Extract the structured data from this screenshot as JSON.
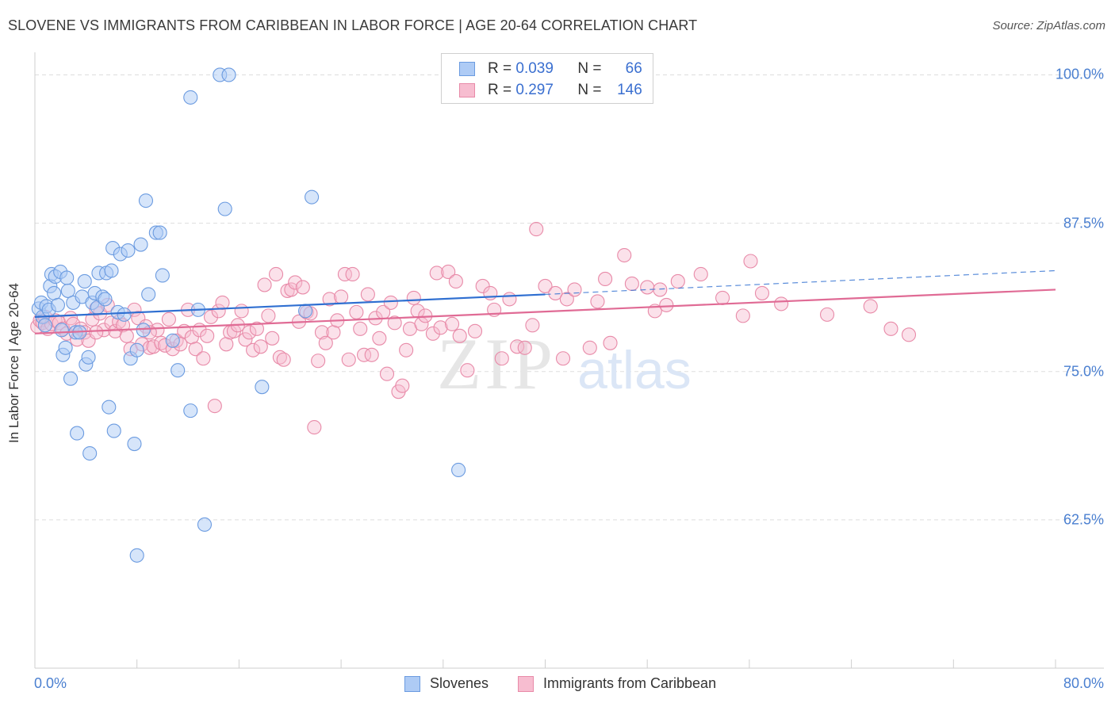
{
  "title": "SLOVENE VS IMMIGRANTS FROM CARIBBEAN IN LABOR FORCE | AGE 20-64 CORRELATION CHART",
  "source": "Source: ZipAtlas.com",
  "watermark": {
    "zip": "ZIP",
    "atlas": "atlas"
  },
  "legend": {
    "r_label": "R =",
    "n_label": "N =",
    "blue": {
      "r": "0.039",
      "n": "66"
    },
    "pink": {
      "r": "0.297",
      "n": "146"
    }
  },
  "colors": {
    "blue_fill": "#aecbf5",
    "blue_stroke": "#6b9be0",
    "blue_line": "#2f6fd1",
    "pink_fill": "#f7bdd0",
    "pink_stroke": "#e88aa8",
    "pink_line": "#e06b95",
    "tick_label": "#4a7fd0",
    "grid": "#dddddd"
  },
  "chart_data": {
    "type": "scatter",
    "title": "SLOVENE VS IMMIGRANTS FROM CARIBBEAN IN LABOR FORCE | AGE 20-64 CORRELATION CHART",
    "xlabel": "",
    "ylabel": "In Labor Force | Age 20-64",
    "xlim": [
      0,
      80
    ],
    "ylim": [
      50,
      101.5
    ],
    "x_tick_labels": [
      "0.0%",
      "80.0%"
    ],
    "y_ticks": [
      62.5,
      75.0,
      87.5,
      100.0
    ],
    "y_tick_labels": [
      "62.5%",
      "75.0%",
      "87.5%",
      "100.0%"
    ],
    "grid": true,
    "legend_position": "top-center",
    "series": [
      {
        "name": "Slovenes",
        "color": "#6b9be0",
        "trend": {
          "x": [
            0,
            40
          ],
          "y": [
            79.6,
            81.5
          ],
          "dashed_to": [
            80,
            83.5
          ]
        },
        "points": [
          [
            0.3,
            80.3
          ],
          [
            0.5,
            80.8
          ],
          [
            0.6,
            79.6
          ],
          [
            0.8,
            78.9
          ],
          [
            0.9,
            80.5
          ],
          [
            1.1,
            80.2
          ],
          [
            1.2,
            82.2
          ],
          [
            1.3,
            83.2
          ],
          [
            1.5,
            81.6
          ],
          [
            1.6,
            83.0
          ],
          [
            1.8,
            80.6
          ],
          [
            2.0,
            83.4
          ],
          [
            2.1,
            78.5
          ],
          [
            2.2,
            76.4
          ],
          [
            2.4,
            77.0
          ],
          [
            2.6,
            81.8
          ],
          [
            2.8,
            74.4
          ],
          [
            3.0,
            80.8
          ],
          [
            3.2,
            78.3
          ],
          [
            3.3,
            69.8
          ],
          [
            3.5,
            78.3
          ],
          [
            3.7,
            81.3
          ],
          [
            3.9,
            82.6
          ],
          [
            4.0,
            75.6
          ],
          [
            4.2,
            76.2
          ],
          [
            4.3,
            68.1
          ],
          [
            4.5,
            80.8
          ],
          [
            4.7,
            81.6
          ],
          [
            4.9,
            80.4
          ],
          [
            5.0,
            83.3
          ],
          [
            5.3,
            81.3
          ],
          [
            5.5,
            81.1
          ],
          [
            5.6,
            83.3
          ],
          [
            5.8,
            72.0
          ],
          [
            6.0,
            83.5
          ],
          [
            6.1,
            85.4
          ],
          [
            6.2,
            70.0
          ],
          [
            6.5,
            80.0
          ],
          [
            6.7,
            84.9
          ],
          [
            7.0,
            79.8
          ],
          [
            7.3,
            85.2
          ],
          [
            7.5,
            76.1
          ],
          [
            7.8,
            68.9
          ],
          [
            8.0,
            76.8
          ],
          [
            8.3,
            85.7
          ],
          [
            8.5,
            78.5
          ],
          [
            8.7,
            89.4
          ],
          [
            8.9,
            81.5
          ],
          [
            9.5,
            86.7
          ],
          [
            9.8,
            86.7
          ],
          [
            10.0,
            83.1
          ],
          [
            10.8,
            77.6
          ],
          [
            11.2,
            75.1
          ],
          [
            12.2,
            71.7
          ],
          [
            12.2,
            98.1
          ],
          [
            12.8,
            80.2
          ],
          [
            13.3,
            62.1
          ],
          [
            14.5,
            100.0
          ],
          [
            14.9,
            88.7
          ],
          [
            15.2,
            100.0
          ],
          [
            17.8,
            73.7
          ],
          [
            21.2,
            80.1
          ],
          [
            21.7,
            89.7
          ],
          [
            33.2,
            66.7
          ],
          [
            8.0,
            59.5
          ],
          [
            2.5,
            82.9
          ]
        ]
      },
      {
        "name": "Immigrants from Caribbean",
        "color": "#e88aa8",
        "trend": {
          "x": [
            0,
            80
          ],
          "y": [
            78.2,
            81.9
          ]
        },
        "points": [
          [
            0.2,
            78.8
          ],
          [
            0.4,
            79.3
          ],
          [
            0.6,
            79.1
          ],
          [
            0.8,
            79.6
          ],
          [
            1.0,
            78.6
          ],
          [
            1.3,
            79.0
          ],
          [
            1.6,
            79.3
          ],
          [
            1.9,
            79.1
          ],
          [
            2.2,
            78.6
          ],
          [
            2.5,
            78.2
          ],
          [
            2.8,
            79.5
          ],
          [
            3.0,
            79.0
          ],
          [
            3.3,
            77.7
          ],
          [
            3.6,
            78.6
          ],
          [
            3.9,
            78.3
          ],
          [
            4.2,
            77.6
          ],
          [
            4.5,
            79.4
          ],
          [
            4.8,
            80.3
          ],
          [
            5.1,
            79.9
          ],
          [
            5.4,
            78.5
          ],
          [
            5.7,
            80.6
          ],
          [
            6.0,
            79.1
          ],
          [
            6.3,
            78.4
          ],
          [
            6.6,
            79.2
          ],
          [
            6.9,
            78.9
          ],
          [
            7.2,
            78.0
          ],
          [
            7.5,
            76.9
          ],
          [
            7.8,
            80.2
          ],
          [
            8.1,
            79.5
          ],
          [
            8.4,
            77.3
          ],
          [
            8.7,
            78.8
          ],
          [
            9.0,
            77.0
          ],
          [
            9.3,
            77.1
          ],
          [
            9.6,
            78.5
          ],
          [
            9.9,
            77.4
          ],
          [
            10.2,
            77.2
          ],
          [
            10.5,
            79.4
          ],
          [
            10.8,
            76.9
          ],
          [
            11.1,
            77.6
          ],
          [
            11.4,
            77.3
          ],
          [
            11.7,
            78.4
          ],
          [
            12.0,
            80.2
          ],
          [
            12.3,
            77.9
          ],
          [
            12.6,
            76.9
          ],
          [
            12.9,
            78.5
          ],
          [
            13.2,
            76.1
          ],
          [
            13.5,
            78.0
          ],
          [
            13.8,
            79.6
          ],
          [
            14.1,
            72.1
          ],
          [
            14.4,
            80.1
          ],
          [
            14.7,
            80.8
          ],
          [
            15.0,
            77.3
          ],
          [
            15.3,
            78.3
          ],
          [
            15.6,
            78.4
          ],
          [
            15.9,
            78.9
          ],
          [
            16.2,
            80.1
          ],
          [
            16.5,
            77.7
          ],
          [
            16.8,
            78.3
          ],
          [
            17.1,
            76.8
          ],
          [
            17.4,
            78.6
          ],
          [
            17.7,
            77.1
          ],
          [
            18.0,
            82.3
          ],
          [
            18.3,
            79.7
          ],
          [
            18.6,
            77.8
          ],
          [
            18.9,
            83.2
          ],
          [
            19.2,
            76.2
          ],
          [
            19.5,
            76.0
          ],
          [
            19.8,
            81.8
          ],
          [
            20.1,
            81.9
          ],
          [
            20.4,
            82.5
          ],
          [
            20.7,
            79.2
          ],
          [
            21.0,
            82.1
          ],
          [
            21.3,
            80.0
          ],
          [
            21.6,
            79.9
          ],
          [
            21.9,
            70.3
          ],
          [
            22.2,
            75.9
          ],
          [
            22.5,
            78.3
          ],
          [
            22.8,
            77.4
          ],
          [
            23.1,
            81.1
          ],
          [
            23.4,
            78.3
          ],
          [
            23.7,
            79.3
          ],
          [
            24.0,
            81.3
          ],
          [
            24.3,
            83.2
          ],
          [
            24.6,
            76.0
          ],
          [
            24.9,
            83.2
          ],
          [
            25.2,
            80.0
          ],
          [
            25.5,
            78.6
          ],
          [
            25.8,
            76.4
          ],
          [
            26.1,
            81.5
          ],
          [
            26.4,
            76.4
          ],
          [
            26.7,
            79.5
          ],
          [
            27.0,
            77.8
          ],
          [
            27.3,
            80.0
          ],
          [
            27.6,
            74.8
          ],
          [
            27.9,
            80.8
          ],
          [
            28.2,
            79.1
          ],
          [
            28.5,
            73.3
          ],
          [
            28.8,
            73.8
          ],
          [
            29.1,
            76.8
          ],
          [
            29.4,
            78.6
          ],
          [
            29.7,
            81.2
          ],
          [
            30.0,
            80.1
          ],
          [
            30.3,
            79.0
          ],
          [
            30.6,
            79.7
          ],
          [
            31.2,
            78.2
          ],
          [
            31.5,
            83.3
          ],
          [
            31.8,
            78.7
          ],
          [
            32.4,
            83.4
          ],
          [
            32.7,
            79.0
          ],
          [
            33.0,
            82.6
          ],
          [
            33.3,
            78.0
          ],
          [
            33.9,
            75.1
          ],
          [
            34.5,
            78.4
          ],
          [
            35.1,
            82.2
          ],
          [
            35.7,
            81.6
          ],
          [
            36.0,
            80.2
          ],
          [
            36.6,
            76.1
          ],
          [
            37.2,
            81.1
          ],
          [
            37.8,
            77.1
          ],
          [
            38.4,
            77.0
          ],
          [
            39.0,
            78.9
          ],
          [
            39.3,
            87.0
          ],
          [
            40.0,
            82.2
          ],
          [
            40.8,
            81.6
          ],
          [
            41.4,
            76.1
          ],
          [
            41.7,
            81.1
          ],
          [
            42.3,
            81.9
          ],
          [
            43.5,
            77.0
          ],
          [
            44.1,
            80.9
          ],
          [
            44.7,
            82.8
          ],
          [
            45.1,
            77.4
          ],
          [
            46.2,
            84.8
          ],
          [
            46.8,
            82.4
          ],
          [
            48.0,
            82.1
          ],
          [
            48.6,
            80.1
          ],
          [
            49.0,
            81.9
          ],
          [
            49.5,
            80.6
          ],
          [
            50.4,
            82.6
          ],
          [
            52.2,
            83.2
          ],
          [
            53.9,
            81.2
          ],
          [
            55.5,
            79.7
          ],
          [
            56.1,
            84.3
          ],
          [
            57.0,
            81.6
          ],
          [
            58.5,
            80.7
          ],
          [
            62.1,
            79.8
          ],
          [
            65.5,
            80.5
          ],
          [
            67.1,
            78.6
          ],
          [
            68.5,
            78.1
          ],
          [
            4.8,
            78.3
          ],
          [
            9.0,
            78.3
          ]
        ]
      }
    ]
  },
  "bottom_legend": {
    "blue_label": "Slovenes",
    "pink_label": "Immigrants from Caribbean"
  }
}
